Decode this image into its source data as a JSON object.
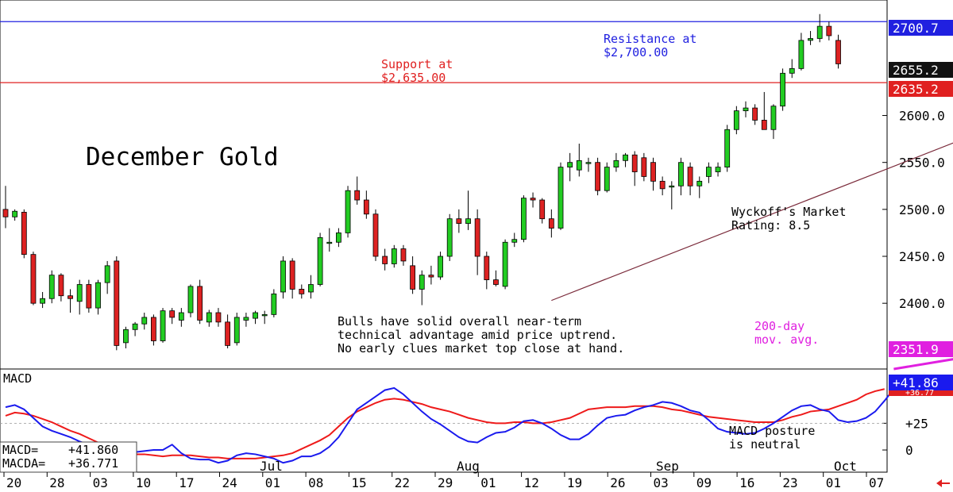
{
  "chart_data": [
    {
      "type": "candlestick",
      "title": "December Gold",
      "y_range": [
        2330,
        2723
      ],
      "y_ticks": [
        2400,
        2450,
        2500,
        2550,
        2600
      ],
      "y_tick_labels": [
        "2400.0",
        "2450.0",
        "2500.0",
        "2550.0",
        "2600.0"
      ],
      "x_tick_labels": [
        "20",
        "28",
        "03",
        "10",
        "17",
        "24",
        "01",
        "08",
        "15",
        "22",
        "29",
        "01",
        "12",
        "19",
        "26",
        "03",
        "09",
        "16",
        "23",
        "01",
        "07"
      ],
      "month_labels": [
        "Jul",
        "Aug",
        "Sep",
        "Oct"
      ],
      "candles": [
        {
          "o": 2500,
          "h": 2525,
          "l": 2480,
          "c": 2492
        },
        {
          "o": 2492,
          "h": 2500,
          "l": 2488,
          "c": 2498
        },
        {
          "o": 2497,
          "h": 2500,
          "l": 2448,
          "c": 2452
        },
        {
          "o": 2452,
          "h": 2455,
          "l": 2398,
          "c": 2400
        },
        {
          "o": 2400,
          "h": 2412,
          "l": 2395,
          "c": 2405
        },
        {
          "o": 2405,
          "h": 2435,
          "l": 2400,
          "c": 2430
        },
        {
          "o": 2430,
          "h": 2432,
          "l": 2402,
          "c": 2408
        },
        {
          "o": 2408,
          "h": 2415,
          "l": 2390,
          "c": 2405
        },
        {
          "o": 2402,
          "h": 2425,
          "l": 2388,
          "c": 2420
        },
        {
          "o": 2420,
          "h": 2425,
          "l": 2390,
          "c": 2395
        },
        {
          "o": 2395,
          "h": 2425,
          "l": 2388,
          "c": 2422
        },
        {
          "o": 2422,
          "h": 2445,
          "l": 2410,
          "c": 2440
        },
        {
          "o": 2445,
          "h": 2450,
          "l": 2350,
          "c": 2355
        },
        {
          "o": 2358,
          "h": 2375,
          "l": 2352,
          "c": 2372
        },
        {
          "o": 2372,
          "h": 2380,
          "l": 2365,
          "c": 2378
        },
        {
          "o": 2378,
          "h": 2390,
          "l": 2372,
          "c": 2385
        },
        {
          "o": 2385,
          "h": 2388,
          "l": 2355,
          "c": 2360
        },
        {
          "o": 2360,
          "h": 2395,
          "l": 2358,
          "c": 2392
        },
        {
          "o": 2392,
          "h": 2395,
          "l": 2378,
          "c": 2385
        },
        {
          "o": 2382,
          "h": 2395,
          "l": 2375,
          "c": 2390
        },
        {
          "o": 2390,
          "h": 2420,
          "l": 2385,
          "c": 2418
        },
        {
          "o": 2418,
          "h": 2425,
          "l": 2378,
          "c": 2382
        },
        {
          "o": 2380,
          "h": 2393,
          "l": 2375,
          "c": 2390
        },
        {
          "o": 2390,
          "h": 2395,
          "l": 2375,
          "c": 2380
        },
        {
          "o": 2380,
          "h": 2388,
          "l": 2352,
          "c": 2355
        },
        {
          "o": 2358,
          "h": 2390,
          "l": 2355,
          "c": 2385
        },
        {
          "o": 2382,
          "h": 2390,
          "l": 2375,
          "c": 2385
        },
        {
          "o": 2384,
          "h": 2392,
          "l": 2378,
          "c": 2390
        },
        {
          "o": 2388,
          "h": 2392,
          "l": 2378,
          "c": 2388
        },
        {
          "o": 2388,
          "h": 2415,
          "l": 2385,
          "c": 2410
        },
        {
          "o": 2412,
          "h": 2450,
          "l": 2405,
          "c": 2445
        },
        {
          "o": 2445,
          "h": 2448,
          "l": 2405,
          "c": 2415
        },
        {
          "o": 2415,
          "h": 2420,
          "l": 2405,
          "c": 2410
        },
        {
          "o": 2412,
          "h": 2430,
          "l": 2405,
          "c": 2420
        },
        {
          "o": 2420,
          "h": 2475,
          "l": 2418,
          "c": 2470
        },
        {
          "o": 2465,
          "h": 2480,
          "l": 2455,
          "c": 2465
        },
        {
          "o": 2465,
          "h": 2480,
          "l": 2460,
          "c": 2475
        },
        {
          "o": 2475,
          "h": 2525,
          "l": 2470,
          "c": 2520
        },
        {
          "o": 2520,
          "h": 2535,
          "l": 2505,
          "c": 2510
        },
        {
          "o": 2510,
          "h": 2520,
          "l": 2490,
          "c": 2495
        },
        {
          "o": 2495,
          "h": 2500,
          "l": 2445,
          "c": 2450
        },
        {
          "o": 2450,
          "h": 2458,
          "l": 2435,
          "c": 2442
        },
        {
          "o": 2442,
          "h": 2462,
          "l": 2438,
          "c": 2458
        },
        {
          "o": 2458,
          "h": 2462,
          "l": 2440,
          "c": 2445
        },
        {
          "o": 2440,
          "h": 2450,
          "l": 2410,
          "c": 2415
        },
        {
          "o": 2415,
          "h": 2435,
          "l": 2398,
          "c": 2430
        },
        {
          "o": 2430,
          "h": 2440,
          "l": 2420,
          "c": 2428
        },
        {
          "o": 2428,
          "h": 2455,
          "l": 2425,
          "c": 2450
        },
        {
          "o": 2450,
          "h": 2495,
          "l": 2445,
          "c": 2490
        },
        {
          "o": 2490,
          "h": 2500,
          "l": 2475,
          "c": 2485
        },
        {
          "o": 2485,
          "h": 2520,
          "l": 2478,
          "c": 2490
        },
        {
          "o": 2490,
          "h": 2500,
          "l": 2430,
          "c": 2450
        },
        {
          "o": 2450,
          "h": 2455,
          "l": 2415,
          "c": 2425
        },
        {
          "o": 2425,
          "h": 2435,
          "l": 2418,
          "c": 2420
        },
        {
          "o": 2418,
          "h": 2468,
          "l": 2415,
          "c": 2465
        },
        {
          "o": 2465,
          "h": 2475,
          "l": 2460,
          "c": 2468
        },
        {
          "o": 2468,
          "h": 2515,
          "l": 2465,
          "c": 2512
        },
        {
          "o": 2512,
          "h": 2518,
          "l": 2502,
          "c": 2510
        },
        {
          "o": 2510,
          "h": 2512,
          "l": 2485,
          "c": 2490
        },
        {
          "o": 2490,
          "h": 2500,
          "l": 2470,
          "c": 2480
        },
        {
          "o": 2480,
          "h": 2550,
          "l": 2478,
          "c": 2545
        },
        {
          "o": 2545,
          "h": 2560,
          "l": 2530,
          "c": 2550
        },
        {
          "o": 2542,
          "h": 2570,
          "l": 2535,
          "c": 2552
        },
        {
          "o": 2550,
          "h": 2555,
          "l": 2540,
          "c": 2550
        },
        {
          "o": 2550,
          "h": 2555,
          "l": 2515,
          "c": 2520
        },
        {
          "o": 2520,
          "h": 2550,
          "l": 2518,
          "c": 2545
        },
        {
          "o": 2545,
          "h": 2560,
          "l": 2540,
          "c": 2552
        },
        {
          "o": 2552,
          "h": 2560,
          "l": 2545,
          "c": 2558
        },
        {
          "o": 2558,
          "h": 2562,
          "l": 2525,
          "c": 2540
        },
        {
          "o": 2555,
          "h": 2560,
          "l": 2530,
          "c": 2535
        },
        {
          "o": 2550,
          "h": 2555,
          "l": 2520,
          "c": 2530
        },
        {
          "o": 2530,
          "h": 2535,
          "l": 2515,
          "c": 2522
        },
        {
          "o": 2525,
          "h": 2530,
          "l": 2500,
          "c": 2525
        },
        {
          "o": 2525,
          "h": 2555,
          "l": 2515,
          "c": 2550
        },
        {
          "o": 2545,
          "h": 2550,
          "l": 2515,
          "c": 2525
        },
        {
          "o": 2525,
          "h": 2535,
          "l": 2512,
          "c": 2530
        },
        {
          "o": 2535,
          "h": 2550,
          "l": 2528,
          "c": 2545
        },
        {
          "o": 2540,
          "h": 2550,
          "l": 2535,
          "c": 2545
        },
        {
          "o": 2545,
          "h": 2590,
          "l": 2540,
          "c": 2585
        },
        {
          "o": 2585,
          "h": 2610,
          "l": 2580,
          "c": 2605
        },
        {
          "o": 2605,
          "h": 2615,
          "l": 2598,
          "c": 2608
        },
        {
          "o": 2608,
          "h": 2612,
          "l": 2590,
          "c": 2595
        },
        {
          "o": 2595,
          "h": 2625,
          "l": 2585,
          "c": 2585
        },
        {
          "o": 2585,
          "h": 2612,
          "l": 2575,
          "c": 2610
        },
        {
          "o": 2610,
          "h": 2650,
          "l": 2605,
          "c": 2645
        },
        {
          "o": 2645,
          "h": 2660,
          "l": 2640,
          "c": 2650
        },
        {
          "o": 2650,
          "h": 2688,
          "l": 2648,
          "c": 2680
        },
        {
          "o": 2680,
          "h": 2690,
          "l": 2675,
          "c": 2682
        },
        {
          "o": 2682,
          "h": 2708,
          "l": 2678,
          "c": 2695
        },
        {
          "o": 2695,
          "h": 2700,
          "l": 2680,
          "c": 2685
        },
        {
          "o": 2680,
          "h": 2686,
          "l": 2650,
          "c": 2655
        }
      ],
      "resistance": {
        "value": 2700,
        "tag": "2700.7",
        "label_1": "Resistance at",
        "label_2": "$2,700.00",
        "color": "#2020e0"
      },
      "support": {
        "value": 2635,
        "tag": "2635.2",
        "label_1": "Support at",
        "label_2": "$2,635.00",
        "color": "#e02020"
      },
      "last_price_tag": "2655.2",
      "trendline": {
        "from": [
          59,
          2403
        ],
        "to": [
          110,
          2600
        ]
      },
      "ma200": {
        "name_1": "200-day",
        "name_2": "mov. avg.",
        "tag": "2351.9",
        "points": [
          [
            96,
            2330
          ],
          [
            104,
            2343
          ]
        ],
        "color": "#e020e0"
      },
      "notes": {
        "rating_1": "Wyckoff's Market",
        "rating_2": "Rating: 8.5",
        "bulls_1": "Bulls have solid overall near-term",
        "bulls_2": "technical advantage amid price uptrend.",
        "bulls_3": "No early clues market top close at hand."
      },
      "colors": {
        "up": "#22cc22",
        "down": "#dd2222",
        "text": "#000000"
      }
    },
    {
      "type": "line",
      "title": "MACD",
      "y_range": [
        -20,
        75
      ],
      "y_ticks": [
        25,
        0
      ],
      "y_tick_labels": [
        "+25",
        "0"
      ],
      "zero_line": 0,
      "series": [
        {
          "name": "MACD",
          "color": "#1a1aee",
          "values": [
            40,
            42,
            38,
            30,
            22,
            18,
            15,
            12,
            8,
            5,
            2,
            -2,
            -5,
            -4,
            -2,
            -1,
            0,
            0,
            5,
            -3,
            -8,
            -9,
            -9,
            -12,
            -10,
            -5,
            -3,
            -4,
            -6,
            -8,
            -12,
            -10,
            -6,
            -6,
            -3,
            3,
            12,
            25,
            38,
            44,
            50,
            56,
            58,
            52,
            44,
            36,
            29,
            24,
            18,
            12,
            8,
            7,
            12,
            16,
            17,
            21,
            27,
            28,
            25,
            20,
            14,
            10,
            10,
            15,
            23,
            30,
            32,
            33,
            37,
            40,
            42,
            45,
            44,
            41,
            37,
            35,
            28,
            20,
            17,
            16,
            15,
            16,
            20,
            25,
            31,
            37,
            41,
            42,
            38,
            36,
            28,
            26,
            27,
            30,
            36,
            46,
            57,
            63,
            64,
            63
          ]
        },
        {
          "name": "MACDA",
          "color": "#ee1a1a",
          "values": [
            32,
            35,
            34,
            32,
            29,
            26,
            22,
            18,
            15,
            11,
            7,
            3,
            0,
            -2,
            -4,
            -4,
            -5,
            -6,
            -5,
            -5,
            -5,
            -6,
            -7,
            -7,
            -8,
            -8,
            -8,
            -8,
            -7,
            -6,
            -5,
            -3,
            1,
            5,
            9,
            14,
            22,
            30,
            36,
            40,
            44,
            47,
            48,
            47,
            45,
            43,
            40,
            38,
            36,
            33,
            30,
            28,
            26,
            25,
            25,
            26,
            26,
            25,
            25,
            26,
            28,
            30,
            34,
            38,
            39,
            40,
            40,
            40,
            41,
            41,
            41,
            40,
            38,
            37,
            35,
            33,
            31,
            30,
            29,
            28,
            27,
            26,
            26,
            26,
            28,
            31,
            33,
            36,
            37,
            38,
            41,
            44,
            47,
            52,
            55,
            57
          ]
        }
      ],
      "tags": {
        "macd": "+41.86",
        "macda": "+36.77"
      },
      "readout": {
        "macd_label": "MACD=",
        "macd_value": "+41.860",
        "macda_label": "MACDA=",
        "macda_value": "+36.771"
      },
      "note_1": "MACD posture",
      "note_2": "is neutral"
    }
  ]
}
